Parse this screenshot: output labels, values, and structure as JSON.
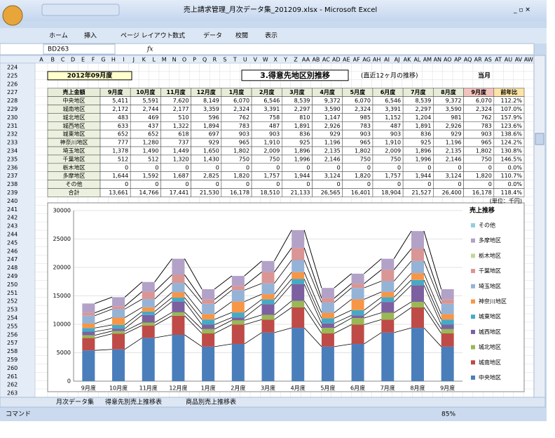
{
  "window": {
    "title": "売上請求管理_月次データ集_201209.xlsx - Microsoft Excel",
    "ribbon_tabs": [
      "ホーム",
      "挿入",
      "ページ レイアウト",
      "数式",
      "データ",
      "校閲",
      "表示"
    ],
    "name_box": "BD263",
    "formula_label": "fx"
  },
  "sheet": {
    "columns": [
      "A",
      "B",
      "C",
      "D",
      "E",
      "F",
      "G",
      "H",
      "I",
      "J",
      "K",
      "L",
      "M",
      "N",
      "O",
      "P",
      "Q",
      "R",
      "S",
      "T",
      "U",
      "V",
      "W",
      "X",
      "Y",
      "Z",
      "AA",
      "AB",
      "AC",
      "AD",
      "AE",
      "AF",
      "AG",
      "AH",
      "AI",
      "AJ",
      "AK",
      "AL",
      "AM",
      "AN",
      "AO",
      "AP",
      "AQ",
      "AR",
      "AS",
      "AT",
      "AU",
      "AV",
      "AW"
    ],
    "rows": [
      224,
      225,
      226,
      227,
      228,
      229,
      230,
      231,
      232,
      233,
      234,
      235,
      236,
      237,
      238,
      239,
      240,
      241,
      242,
      243,
      244,
      245,
      246,
      247,
      248,
      249,
      250,
      251,
      252,
      253,
      254,
      255,
      256,
      257,
      258,
      259,
      260,
      261,
      262,
      263
    ]
  },
  "report": {
    "date": "2012年09月度",
    "title": "3.得意先地区別推移",
    "subtitle": "(直近12ヶ月の推移)",
    "current": "当月",
    "unit": "(単位：千円)"
  },
  "table": {
    "header": [
      "売上金額",
      "9月度",
      "10月度",
      "11月度",
      "12月度",
      "1月度",
      "2月度",
      "3月度",
      "4月度",
      "5月度",
      "6月度",
      "7月度",
      "8月度",
      "9月度",
      "前年比"
    ],
    "rows": [
      [
        "中央地区",
        "5,411",
        "5,591",
        "7,620",
        "8,149",
        "6,070",
        "6,546",
        "8,539",
        "9,372",
        "6,070",
        "6,546",
        "8,539",
        "9,372",
        "6,070",
        "112.2%"
      ],
      [
        "城南地区",
        "2,172",
        "2,744",
        "2,177",
        "3,359",
        "2,324",
        "3,391",
        "2,297",
        "3,590",
        "2,324",
        "3,391",
        "2,297",
        "3,590",
        "2,324",
        "107.0%"
      ],
      [
        "城北地区",
        "483",
        "469",
        "510",
        "596",
        "762",
        "758",
        "810",
        "1,147",
        "985",
        "1,152",
        "1,204",
        "981",
        "762",
        "157.9%"
      ],
      [
        "城西地区",
        "633",
        "437",
        "1,322",
        "1,894",
        "783",
        "487",
        "1,891",
        "2,926",
        "783",
        "487",
        "1,891",
        "2,926",
        "783",
        "123.6%"
      ],
      [
        "城東地区",
        "652",
        "652",
        "618",
        "697",
        "903",
        "903",
        "836",
        "929",
        "903",
        "903",
        "836",
        "929",
        "903",
        "138.6%"
      ],
      [
        "神奈川地区",
        "777",
        "1,280",
        "737",
        "929",
        "965",
        "1,910",
        "925",
        "1,196",
        "965",
        "1,910",
        "925",
        "1,196",
        "965",
        "124.2%"
      ],
      [
        "埼玉地区",
        "1,378",
        "1,490",
        "1,449",
        "1,650",
        "1,802",
        "2,009",
        "1,896",
        "2,135",
        "1,802",
        "2,009",
        "1,896",
        "2,135",
        "1,802",
        "130.8%"
      ],
      [
        "千葉地区",
        "512",
        "512",
        "1,320",
        "1,430",
        "750",
        "750",
        "1,996",
        "2,146",
        "750",
        "750",
        "1,996",
        "2,146",
        "750",
        "146.5%"
      ],
      [
        "栃木地区",
        "0",
        "0",
        "0",
        "0",
        "0",
        "0",
        "0",
        "0",
        "0",
        "0",
        "0",
        "0",
        "0",
        "0.0%"
      ],
      [
        "多摩地区",
        "1,644",
        "1,592",
        "1,687",
        "2,825",
        "1,820",
        "1,757",
        "1,944",
        "3,124",
        "1,820",
        "1,757",
        "1,944",
        "3,124",
        "1,820",
        "110.7%"
      ],
      [
        "その他",
        "0",
        "0",
        "0",
        "0",
        "0",
        "0",
        "0",
        "0",
        "0",
        "0",
        "0",
        "0",
        "0",
        "0.0%"
      ],
      [
        "合計",
        "13,661",
        "14,766",
        "17,441",
        "21,530",
        "16,178",
        "18,510",
        "21,133",
        "26,565",
        "16,401",
        "18,904",
        "21,527",
        "26,400",
        "16,178",
        "118.4%"
      ]
    ]
  },
  "chart_data": {
    "type": "bar",
    "stacked": true,
    "legend_title": "売上推移",
    "legend": "right",
    "grid": true,
    "categories": [
      "9月度",
      "10月度",
      "11月度",
      "12月度",
      "1月度",
      "2月度",
      "3月度",
      "4月度",
      "5月度",
      "6月度",
      "7月度",
      "8月度",
      "9月度"
    ],
    "ylim": [
      0,
      30000
    ],
    "yticks": [
      0,
      5000,
      10000,
      15000,
      20000,
      25000,
      30000
    ],
    "series": [
      {
        "name": "中央地区",
        "color": "#4a7ebb",
        "values": [
          5411,
          5591,
          7620,
          8149,
          6070,
          6546,
          8539,
          9372,
          6070,
          6546,
          8539,
          9372,
          6070
        ]
      },
      {
        "name": "城南地区",
        "color": "#be4b48",
        "values": [
          2172,
          2744,
          2177,
          3359,
          2324,
          3391,
          2297,
          3590,
          2324,
          3391,
          2297,
          3590,
          2324
        ]
      },
      {
        "name": "城北地区",
        "color": "#98b954",
        "values": [
          483,
          469,
          510,
          596,
          762,
          758,
          810,
          1147,
          985,
          1152,
          1204,
          981,
          762
        ]
      },
      {
        "name": "城西地区",
        "color": "#7d60a0",
        "values": [
          633,
          437,
          1322,
          1894,
          783,
          487,
          1891,
          2926,
          783,
          487,
          1891,
          2926,
          783
        ]
      },
      {
        "name": "城東地区",
        "color": "#46aac5",
        "values": [
          652,
          652,
          618,
          697,
          903,
          903,
          836,
          929,
          903,
          903,
          836,
          929,
          903
        ]
      },
      {
        "name": "神奈川地区",
        "color": "#f79646",
        "values": [
          777,
          1280,
          737,
          929,
          965,
          1910,
          925,
          1196,
          965,
          1910,
          925,
          1196,
          965
        ]
      },
      {
        "name": "埼玉地区",
        "color": "#95b3d7",
        "values": [
          1378,
          1490,
          1449,
          1650,
          1802,
          2009,
          1896,
          2135,
          1802,
          2009,
          1896,
          2135,
          1802
        ]
      },
      {
        "name": "千葉地区",
        "color": "#d99694",
        "values": [
          512,
          512,
          1320,
          1430,
          750,
          750,
          1996,
          2146,
          750,
          750,
          1996,
          2146,
          750
        ]
      },
      {
        "name": "栃木地区",
        "color": "#c3d69b",
        "values": [
          0,
          0,
          0,
          0,
          0,
          0,
          0,
          0,
          0,
          0,
          0,
          0,
          0
        ]
      },
      {
        "name": "多摩地区",
        "color": "#b3a2c7",
        "values": [
          1644,
          1592,
          1687,
          2825,
          1820,
          1757,
          1944,
          3124,
          1820,
          1757,
          1944,
          3124,
          1820
        ]
      },
      {
        "name": "その他",
        "color": "#93cddd",
        "values": [
          0,
          0,
          0,
          0,
          0,
          0,
          0,
          0,
          0,
          0,
          0,
          0,
          0
        ]
      }
    ]
  },
  "sheet_tabs": [
    "月次データ集",
    "得意先別売上推移表",
    "商品別売上推移表"
  ],
  "status": {
    "mode": "コマンド",
    "zoom": "85%"
  }
}
